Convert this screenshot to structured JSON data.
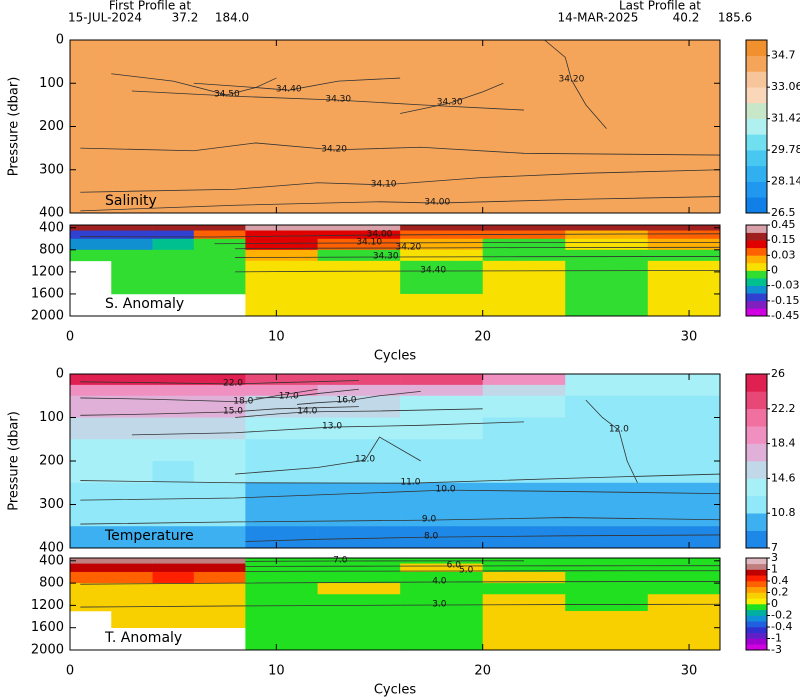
{
  "header": {
    "first_title": "First Profile at",
    "first_date": "15-JUL-2024",
    "first_lat": "37.2",
    "first_lon": "184.0",
    "last_title": "Last Profile at",
    "last_date": "14-MAR-2025",
    "last_lat": "40.2",
    "last_lon": "185.6"
  },
  "chart_data": [
    {
      "type": "heatmap",
      "label": "Salinity",
      "y_label": "Pressure (dbar)",
      "show_xtick_labels": false,
      "y_inverted": true,
      "xlim": [
        0,
        31.5
      ],
      "ylim": [
        0,
        400
      ],
      "xticks": [
        0,
        10,
        20,
        30
      ],
      "yticks": [
        0,
        100,
        200,
        300,
        400
      ],
      "x_edges": [
        0,
        2,
        4,
        6,
        8.5,
        12,
        16,
        20,
        24,
        28,
        31.5
      ],
      "y_edges": [
        0,
        100,
        200,
        300,
        400
      ],
      "z": [
        [
          34.5,
          34.5,
          34.5,
          34.45,
          34.4,
          34.35,
          34.3,
          34.25,
          34.2,
          34.2
        ],
        [
          34.3,
          34.3,
          34.3,
          34.3,
          34.3,
          34.25,
          34.25,
          34.2,
          34.2,
          34.2
        ],
        [
          34.2,
          34.2,
          34.2,
          34.2,
          34.2,
          34.15,
          34.1,
          34.1,
          34.1,
          34.1
        ],
        [
          34.05,
          34.05,
          34.05,
          34.05,
          34.0,
          34.0,
          34.0,
          34.0,
          34.0,
          34.0
        ]
      ],
      "colorbar": {
        "lim": [
          26.5,
          35.52
        ],
        "ticks": [
          26.5,
          28.14,
          29.78,
          31.42,
          33.06,
          34.7
        ],
        "colors": [
          "#1080e8",
          "#2098f0",
          "#30b0f0",
          "#48c8f0",
          "#70e0f0",
          "#b0f0f0",
          "#c8e6c8",
          "#f9d7b8",
          "#f7c59a",
          "#f5a55a",
          "#f0902e"
        ]
      },
      "contours": [
        {
          "label": "34.00",
          "x": [
            0.5,
            8,
            15,
            17.8,
            25,
            31.5
          ],
          "y": [
            395,
            382,
            374,
            377,
            368,
            362
          ]
        },
        {
          "label": "34.10",
          "x": [
            0.5,
            8,
            12,
            15.2,
            20,
            25,
            31.5
          ],
          "y": [
            352,
            345,
            330,
            335,
            318,
            308,
            300
          ]
        },
        {
          "label": "34.20",
          "x": [
            0.5,
            6,
            9,
            12.8,
            17,
            22,
            31.5
          ],
          "y": [
            250,
            256,
            238,
            254,
            248,
            262,
            266
          ]
        },
        {
          "label": "34.30",
          "x": [
            3,
            8,
            13,
            17,
            22
          ],
          "y": [
            118,
            130,
            139,
            150,
            162
          ]
        },
        {
          "label": "34.30",
          "x": [
            16,
            17.5,
            18.4,
            20,
            21
          ],
          "y": [
            170,
            155,
            146,
            120,
            100
          ]
        },
        {
          "label": "34.40",
          "x": [
            6,
            9,
            10.6,
            13,
            16
          ],
          "y": [
            100,
            110,
            116,
            95,
            88
          ]
        },
        {
          "label": "34.50",
          "x": [
            2,
            5,
            7.6,
            9,
            10
          ],
          "y": [
            78,
            95,
            127,
            110,
            88
          ]
        },
        {
          "label": "34.20",
          "x": [
            23,
            24,
            24.3,
            25,
            26
          ],
          "y": [
            0,
            40,
            92,
            150,
            205
          ]
        }
      ]
    },
    {
      "type": "heatmap",
      "label": "S. Anomaly",
      "x_label": "Cycles",
      "show_xtick_labels": true,
      "y_inverted": true,
      "xlim": [
        0,
        31.5
      ],
      "ylim": [
        350,
        2000
      ],
      "xticks": [
        0,
        10,
        20,
        30
      ],
      "yticks": [
        400,
        800,
        1200,
        1600,
        2000
      ],
      "x_edges": [
        0,
        2,
        4,
        6,
        8.5,
        12,
        16,
        20,
        24,
        28,
        31.5
      ],
      "y_edges": [
        350,
        450,
        600,
        800,
        1000,
        1300,
        1600,
        2000
      ],
      "z": [
        [
          0.2,
          0.2,
          0.2,
          0.2,
          0.3,
          0.3,
          0.2,
          0.2,
          0.2,
          0.2
        ],
        [
          -0.1,
          -0.1,
          -0.1,
          0.05,
          0.1,
          0.1,
          0.05,
          0.05,
          0.02,
          0.05
        ],
        [
          -0.05,
          -0.05,
          -0.02,
          -0.01,
          0.1,
          0.05,
          0.02,
          -0.01,
          0.01,
          0.02
        ],
        [
          -0.01,
          -0.01,
          -0.01,
          -0.01,
          0.02,
          -0.01,
          0.01,
          -0.01,
          -0.01,
          -0.01
        ],
        [
          null,
          -0.01,
          -0.01,
          -0.01,
          0.01,
          0.01,
          -0.01,
          0.01,
          -0.01,
          0.01
        ],
        [
          null,
          -0.01,
          -0.01,
          -0.01,
          0.01,
          0.01,
          -0.01,
          0.01,
          -0.01,
          0.01
        ],
        [
          null,
          null,
          null,
          null,
          0.01,
          0.01,
          0.01,
          0.01,
          -0.01,
          0.01
        ]
      ],
      "colorbar": {
        "ticks": [
          -0.45,
          -0.15,
          -0.03,
          0,
          0.03,
          0.15,
          0.45
        ],
        "colors": [
          "#d000e0",
          "#8020c0",
          "#3040d0",
          "#1090d0",
          "#00c090",
          "#30dd30",
          "#f8e000",
          "#ffb000",
          "#ff6000",
          "#e00000",
          "#a02020",
          "#d8a0a8"
        ]
      },
      "contours": [
        {
          "label": "34.00",
          "x": [
            0.5,
            4,
            7,
            15,
            27,
            31.5
          ],
          "y": [
            560,
            565,
            568,
            530,
            513,
            510
          ]
        },
        {
          "label": "34.10",
          "x": [
            7,
            11,
            14.5,
            20,
            31.5
          ],
          "y": [
            690,
            680,
            676,
            670,
            665
          ]
        },
        {
          "label": "34.20",
          "x": [
            8,
            12,
            16.4,
            22,
            31.5
          ],
          "y": [
            780,
            770,
            767,
            760,
            755
          ]
        },
        {
          "label": "34.30",
          "x": [
            8,
            12,
            15.3,
            22,
            31.5
          ],
          "y": [
            940,
            935,
            930,
            925,
            920
          ]
        },
        {
          "label": "34.40",
          "x": [
            8,
            12,
            17.6,
            24,
            31.5
          ],
          "y": [
            1200,
            1190,
            1184,
            1180,
            1175
          ]
        }
      ]
    },
    {
      "type": "heatmap",
      "label": "Temperature",
      "y_label": "Pressure (dbar)",
      "show_xtick_labels": false,
      "y_inverted": true,
      "xlim": [
        0,
        31.5
      ],
      "ylim": [
        0,
        400
      ],
      "xticks": [
        0,
        10,
        20,
        30
      ],
      "yticks": [
        0,
        100,
        200,
        300,
        400
      ],
      "x_edges": [
        0,
        2,
        4,
        6,
        8.5,
        12,
        16,
        20,
        24,
        28,
        31.5
      ],
      "y_edges": [
        0,
        25,
        50,
        100,
        150,
        200,
        250,
        300,
        350,
        400
      ],
      "z": [
        [
          24.5,
          24.5,
          24.5,
          24.5,
          23,
          23,
          23,
          19,
          13,
          13
        ],
        [
          20,
          20,
          20,
          20,
          18.5,
          18,
          18,
          15,
          13,
          13
        ],
        [
          17,
          17,
          17,
          17,
          15,
          15,
          14,
          14,
          12.5,
          12.5
        ],
        [
          15.5,
          15.5,
          15.5,
          15.5,
          13.5,
          13,
          13,
          12.5,
          12.5,
          12.5
        ],
        [
          14,
          14,
          14,
          14,
          12,
          12,
          12,
          12,
          12,
          12
        ],
        [
          13,
          13,
          12.5,
          13,
          11,
          11,
          11,
          11,
          11.5,
          11.5
        ],
        [
          12,
          12,
          11,
          12,
          10,
          10,
          10,
          10,
          10,
          10
        ],
        [
          11,
          11,
          11,
          11,
          9,
          9,
          9,
          9,
          9,
          9
        ],
        [
          10,
          10,
          10,
          10,
          8,
          8,
          8,
          8,
          8,
          8
        ]
      ],
      "colorbar": {
        "lim": [
          7,
          26
        ],
        "ticks": [
          7,
          10.8,
          14.6,
          18.4,
          22.2,
          26
        ],
        "colors": [
          "#1e88e8",
          "#3cb0f0",
          "#90e8f8",
          "#a8f0f8",
          "#c0d8e8",
          "#e0b0d8",
          "#f090c0",
          "#f070a0",
          "#e84878",
          "#e02050"
        ]
      },
      "contours": [
        {
          "label": "22.0",
          "x": [
            0.5,
            4,
            7.9,
            10,
            14
          ],
          "y": [
            18,
            20,
            23,
            20,
            15
          ]
        },
        {
          "label": "18.0",
          "x": [
            0.5,
            4,
            8.4,
            10,
            12
          ],
          "y": [
            55,
            58,
            64,
            50,
            35
          ]
        },
        {
          "label": "17.0",
          "x": [
            9,
            10,
            10.6,
            12,
            14
          ],
          "y": [
            55,
            54,
            53,
            45,
            35
          ]
        },
        {
          "label": "16.0",
          "x": [
            11,
            12,
            13.4,
            15,
            17
          ],
          "y": [
            70,
            66,
            62,
            50,
            40
          ]
        },
        {
          "label": "15.0",
          "x": [
            0.5,
            4,
            7.9,
            10,
            14
          ],
          "y": [
            95,
            92,
            87,
            80,
            75
          ]
        },
        {
          "label": "14.0",
          "x": [
            8,
            10,
            11.5,
            15,
            20
          ],
          "y": [
            100,
            92,
            87,
            85,
            80
          ]
        },
        {
          "label": "13.0",
          "x": [
            3,
            8,
            12.7,
            17,
            22
          ],
          "y": [
            140,
            135,
            122,
            118,
            110
          ]
        },
        {
          "label": "12.0",
          "x": [
            8,
            12,
            14.3,
            15,
            17
          ],
          "y": [
            230,
            215,
            198,
            145,
            200
          ]
        },
        {
          "label": "12.0",
          "x": [
            25,
            25.8,
            26.6,
            27,
            27.5
          ],
          "y": [
            60,
            100,
            129,
            200,
            250
          ]
        },
        {
          "label": "11.0",
          "x": [
            0.5,
            8,
            16.5,
            24,
            31.5
          ],
          "y": [
            245,
            250,
            251,
            240,
            230
          ]
        },
        {
          "label": "10.0",
          "x": [
            0.5,
            8,
            18.2,
            24,
            31.5
          ],
          "y": [
            290,
            285,
            267,
            270,
            275
          ]
        },
        {
          "label": "9.0",
          "x": [
            0.5,
            8,
            17.4,
            24,
            31.5
          ],
          "y": [
            345,
            340,
            336,
            330,
            335
          ]
        },
        {
          "label": "8.0",
          "x": [
            8.5,
            12,
            17.5,
            24,
            31.5
          ],
          "y": [
            385,
            380,
            375,
            372,
            370
          ]
        }
      ]
    },
    {
      "type": "heatmap",
      "label": "T. Anomaly",
      "x_label": "Cycles",
      "show_xtick_labels": true,
      "y_inverted": true,
      "xlim": [
        0,
        31.5
      ],
      "ylim": [
        350,
        2000
      ],
      "xticks": [
        0,
        10,
        20,
        30
      ],
      "yticks": [
        400,
        800,
        1200,
        1600,
        2000
      ],
      "x_edges": [
        0,
        2,
        4,
        6,
        8.5,
        12,
        16,
        20,
        24,
        28,
        31.5
      ],
      "y_edges": [
        350,
        450,
        600,
        800,
        1000,
        1300,
        1600,
        2000
      ],
      "z": [
        [
          1.5,
          1.5,
          1.5,
          1.5,
          -0.1,
          -0.1,
          -0.1,
          -0.1,
          -0.1,
          -0.1
        ],
        [
          0.8,
          0.8,
          0.8,
          0.8,
          -0.1,
          -0.1,
          0.1,
          -0.1,
          -0.1,
          -0.1
        ],
        [
          0.3,
          0.3,
          0.4,
          0.3,
          -0.1,
          -0.1,
          -0.1,
          0.1,
          -0.1,
          -0.1
        ],
        [
          0.1,
          0.1,
          0.1,
          0.1,
          -0.1,
          0.1,
          -0.1,
          -0.1,
          -0.1,
          -0.1
        ],
        [
          0.1,
          0.1,
          0.1,
          0.1,
          -0.1,
          -0.1,
          -0.1,
          0.1,
          -0.1,
          0.1
        ],
        [
          null,
          0.1,
          0.1,
          0.1,
          -0.1,
          -0.1,
          -0.1,
          0.1,
          0.1,
          0.1
        ],
        [
          null,
          null,
          null,
          null,
          -0.1,
          -0.1,
          -0.1,
          0.1,
          0.1,
          0.1
        ]
      ],
      "colorbar": {
        "ticks": [
          -3,
          -1,
          -0.4,
          -0.2,
          0,
          0.2,
          0.4,
          1,
          3
        ],
        "colors": [
          "#d000e0",
          "#a000d0",
          "#6020c8",
          "#3030d0",
          "#2060e0",
          "#1090d8",
          "#00b0a0",
          "#20e020",
          "#f8f000",
          "#f8d000",
          "#ffa000",
          "#ff6000",
          "#ff2000",
          "#c00000",
          "#c08080",
          "#e0b8c0"
        ]
      },
      "contours": [
        {
          "label": "7.0",
          "x": [
            8.5,
            11,
            13.1,
            17,
            22
          ],
          "y": [
            410,
            406,
            404,
            402,
            400
          ]
        },
        {
          "label": "6.0",
          "x": [
            8.5,
            14,
            18.6,
            24,
            31.5
          ],
          "y": [
            500,
            497,
            493,
            490,
            488
          ]
        },
        {
          "label": "5.0",
          "x": [
            8.5,
            14,
            19.2,
            24,
            31.5
          ],
          "y": [
            590,
            586,
            583,
            580,
            578
          ]
        },
        {
          "label": "4.0",
          "x": [
            0.5,
            8,
            17.9,
            24,
            31.5
          ],
          "y": [
            820,
            800,
            780,
            775,
            770
          ]
        },
        {
          "label": "3.0",
          "x": [
            0.5,
            8,
            17.9,
            24,
            31.5
          ],
          "y": [
            1230,
            1210,
            1193,
            1185,
            1180
          ]
        }
      ]
    }
  ]
}
